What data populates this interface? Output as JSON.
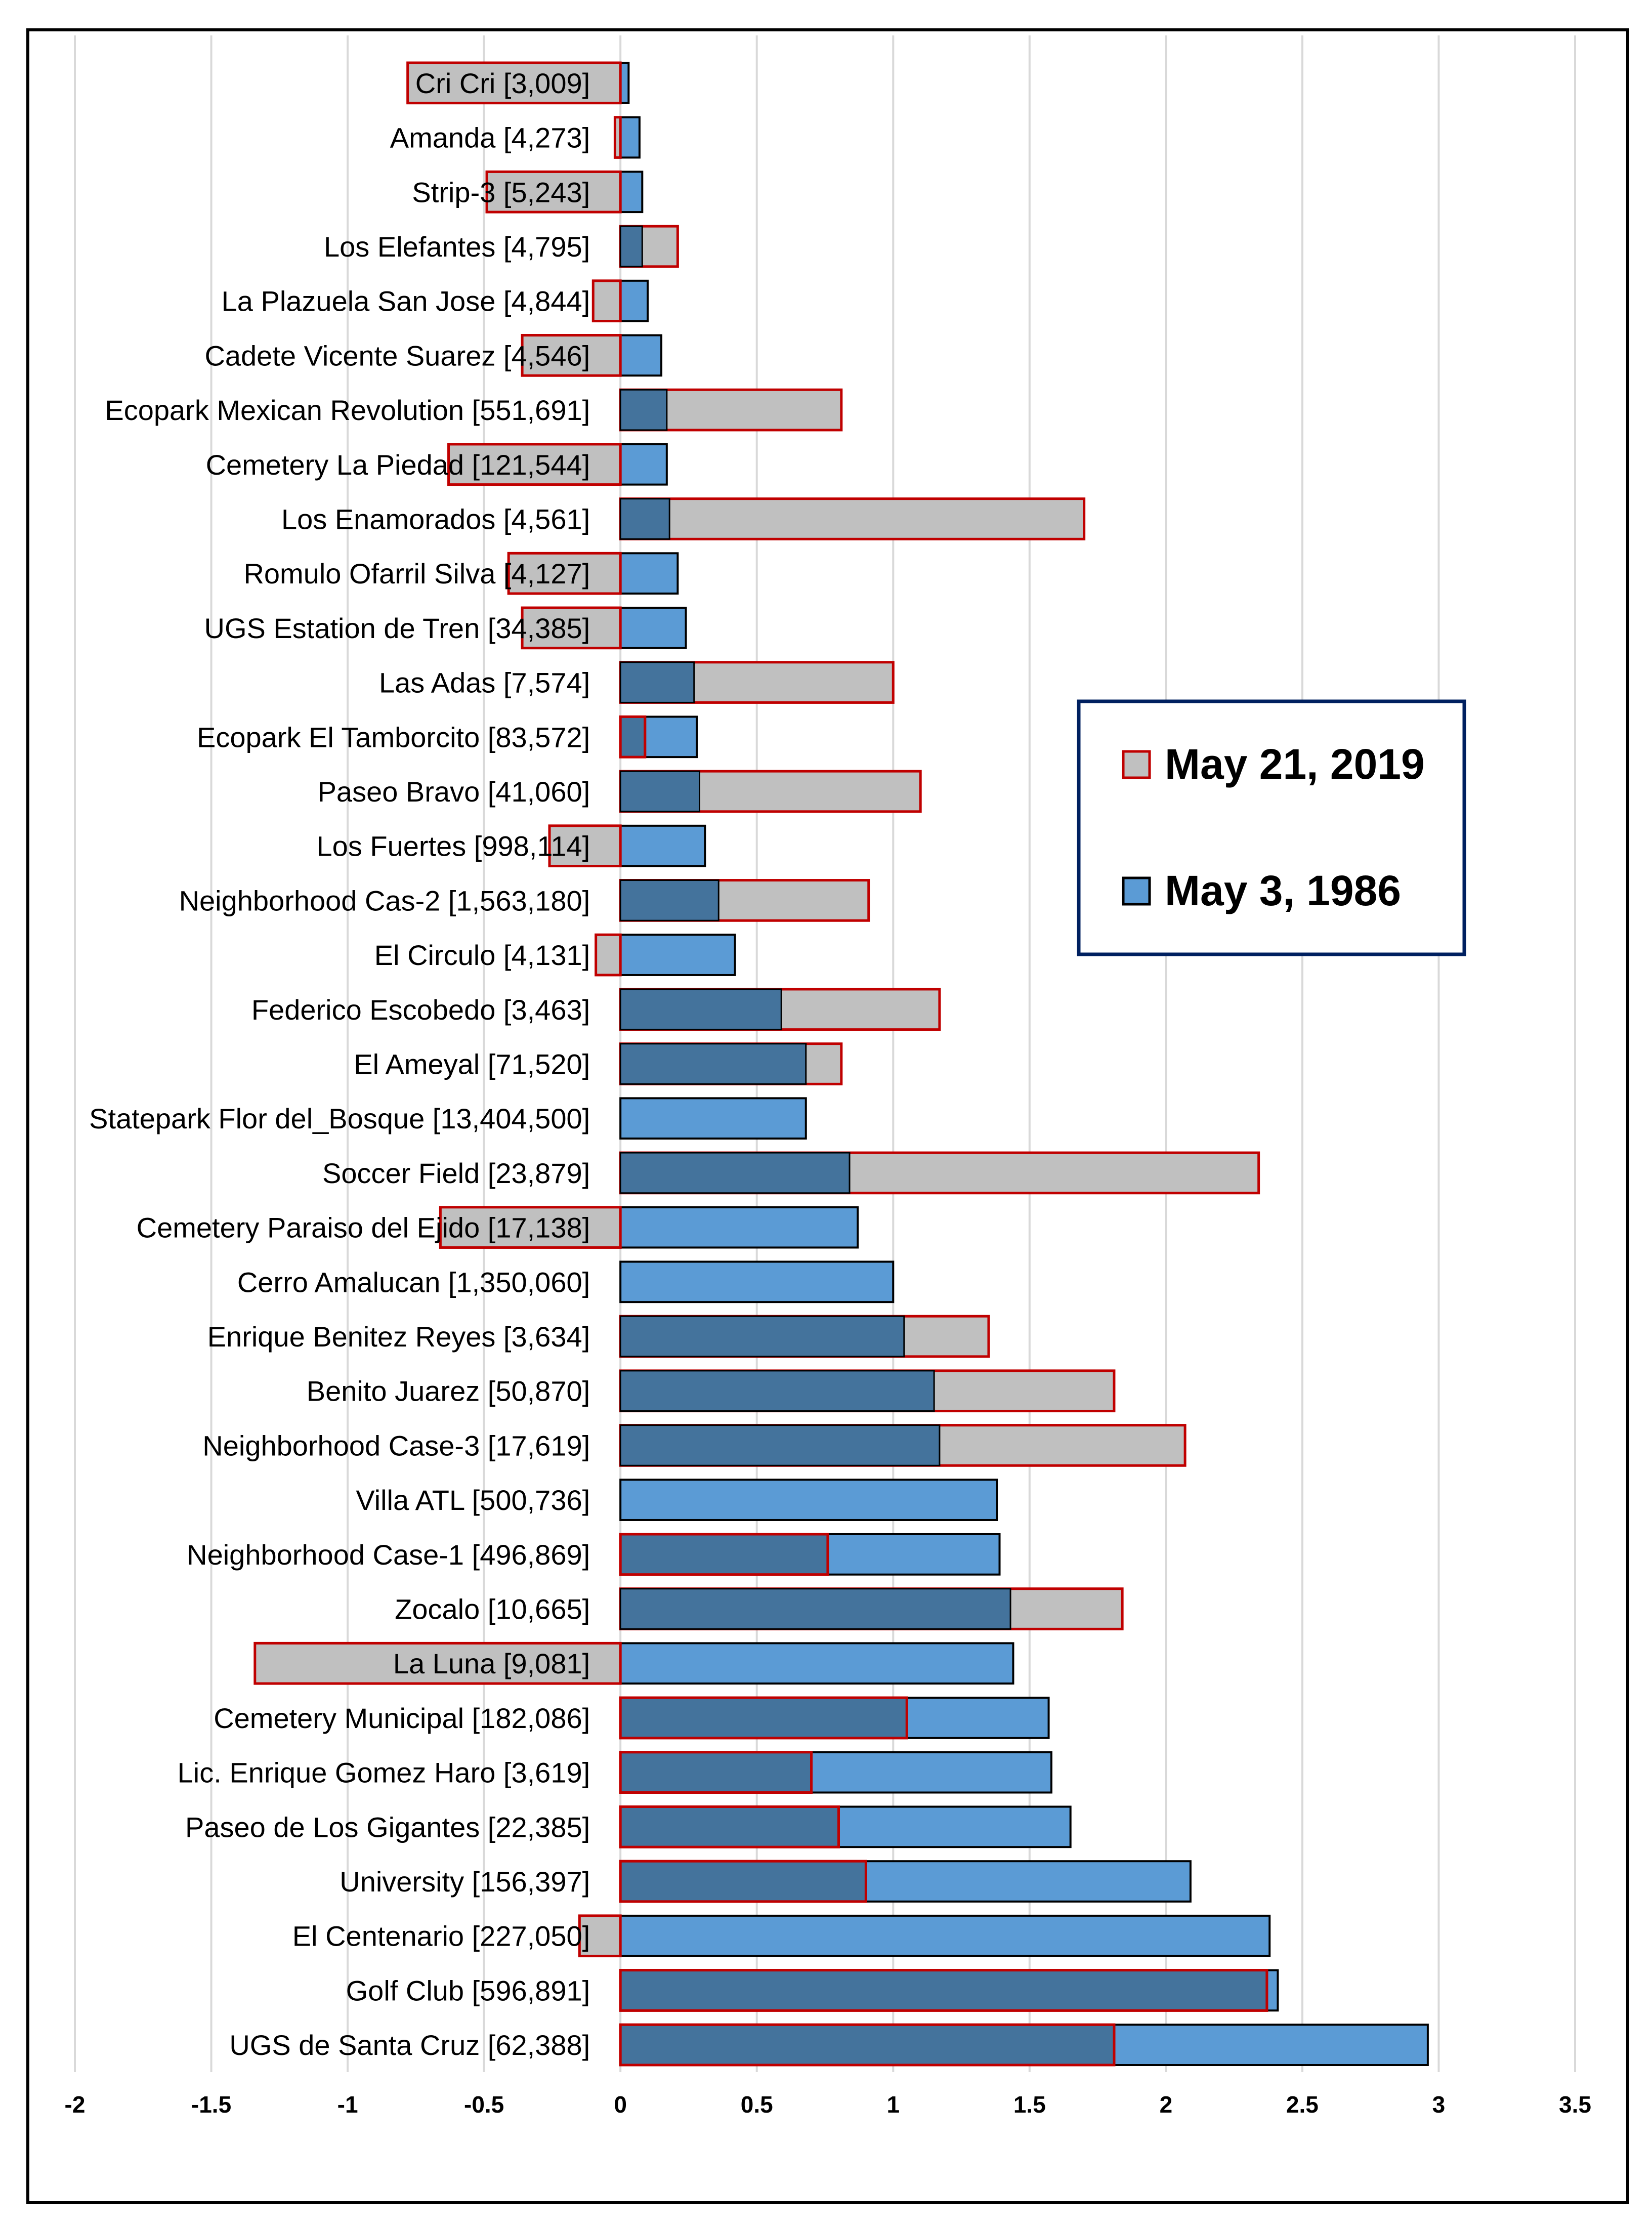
{
  "chart_data": {
    "type": "bar",
    "orientation": "horizontal",
    "title": "",
    "xlabel": "",
    "ylabel": "",
    "xlim": [
      -2,
      3.5
    ],
    "xticks": [
      "-2",
      "-1.5",
      "-1",
      "-0.5",
      "0",
      "0.5",
      "1",
      "1.5",
      "2",
      "2.5",
      "3",
      "3.5"
    ],
    "xtick_values": [
      -2,
      -1.5,
      -1,
      -0.5,
      0,
      0.5,
      1,
      1.5,
      2,
      2.5,
      3,
      3.5
    ],
    "grid": "vertical",
    "legend_position": "right-middle",
    "categories": [
      "Cri Cri [3,009]",
      "Amanda [4,273]",
      "Strip-3 [5,243]",
      "Los Elefantes [4,795]",
      "La Plazuela San Jose [4,844]",
      "Cadete Vicente Suarez [4,546]",
      "Ecopark Mexican Revolution [551,691]",
      "Cemetery La Piedad [121,544]",
      "Los Enamorados [4,561]",
      "Romulo Ofarril Silva [4,127]",
      "UGS Estation de Tren [34,385]",
      "Las Adas [7,574]",
      "Ecopark El Tamborcito [83,572]",
      "Paseo Bravo [41,060]",
      "Los Fuertes [998,114]",
      "Neighborhood Cas-2 [1,563,180]",
      "El Circulo [4,131]",
      "Federico Escobedo [3,463]",
      "El Ameyal [71,520]",
      "Statepark Flor del_Bosque [13,404,500]",
      "Soccer Field [23,879]",
      "Cemetery Paraiso del Ejido [17,138]",
      "Cerro Amalucan [1,350,060]",
      "Enrique Benitez Reyes [3,634]",
      "Benito Juarez [50,870]",
      "Neighborhood Case-3 [17,619]",
      "Villa ATL [500,736]",
      "Neighborhood Case-1 [496,869]",
      "Zocalo [10,665]",
      "La Luna [9,081]",
      "Cemetery Municipal [182,086]",
      "Lic. Enrique Gomez Haro [3,619]",
      "Paseo de Los Gigantes [22,385]",
      "University [156,397]",
      "El Centenario [227,050]",
      "Golf Club [596,891]",
      "UGS de Santa Cruz [62,388]"
    ],
    "series": [
      {
        "name": "May 21, 2019",
        "fill": "#c0c0c0",
        "stroke": "#c00000",
        "values": [
          -0.78,
          -0.02,
          -0.49,
          0.21,
          -0.1,
          -0.36,
          0.81,
          -0.63,
          1.7,
          -0.41,
          -0.36,
          1.0,
          0.09,
          1.1,
          -0.26,
          0.91,
          -0.09,
          1.17,
          0.81,
          0,
          2.34,
          -0.66,
          0,
          1.35,
          1.81,
          2.07,
          0,
          0.76,
          1.84,
          -1.34,
          1.05,
          0.7,
          0.8,
          0.9,
          -0.15,
          2.37,
          1.81
        ]
      },
      {
        "name": "May 3, 1986",
        "fill": "#5b9bd5",
        "stroke": "#000000",
        "values": [
          0.03,
          0.07,
          0.08,
          0.08,
          0.1,
          0.15,
          0.17,
          0.17,
          0.18,
          0.21,
          0.24,
          0.27,
          0.28,
          0.29,
          0.31,
          0.36,
          0.42,
          0.59,
          0.68,
          0.68,
          0.84,
          0.87,
          1.0,
          1.04,
          1.15,
          1.17,
          1.38,
          1.39,
          1.43,
          1.44,
          1.57,
          1.58,
          1.65,
          2.09,
          2.38,
          2.41,
          2.96
        ]
      }
    ],
    "overlap_color": "#44739c",
    "legend": [
      {
        "label": "May 21, 2019",
        "fill": "#c0c0c0",
        "stroke": "#c00000"
      },
      {
        "label": "May 3, 1986",
        "fill": "#5b9bd5",
        "stroke": "#000000"
      }
    ],
    "legend_border_color": "#002060",
    "grid_color": "#d9d9d9"
  }
}
